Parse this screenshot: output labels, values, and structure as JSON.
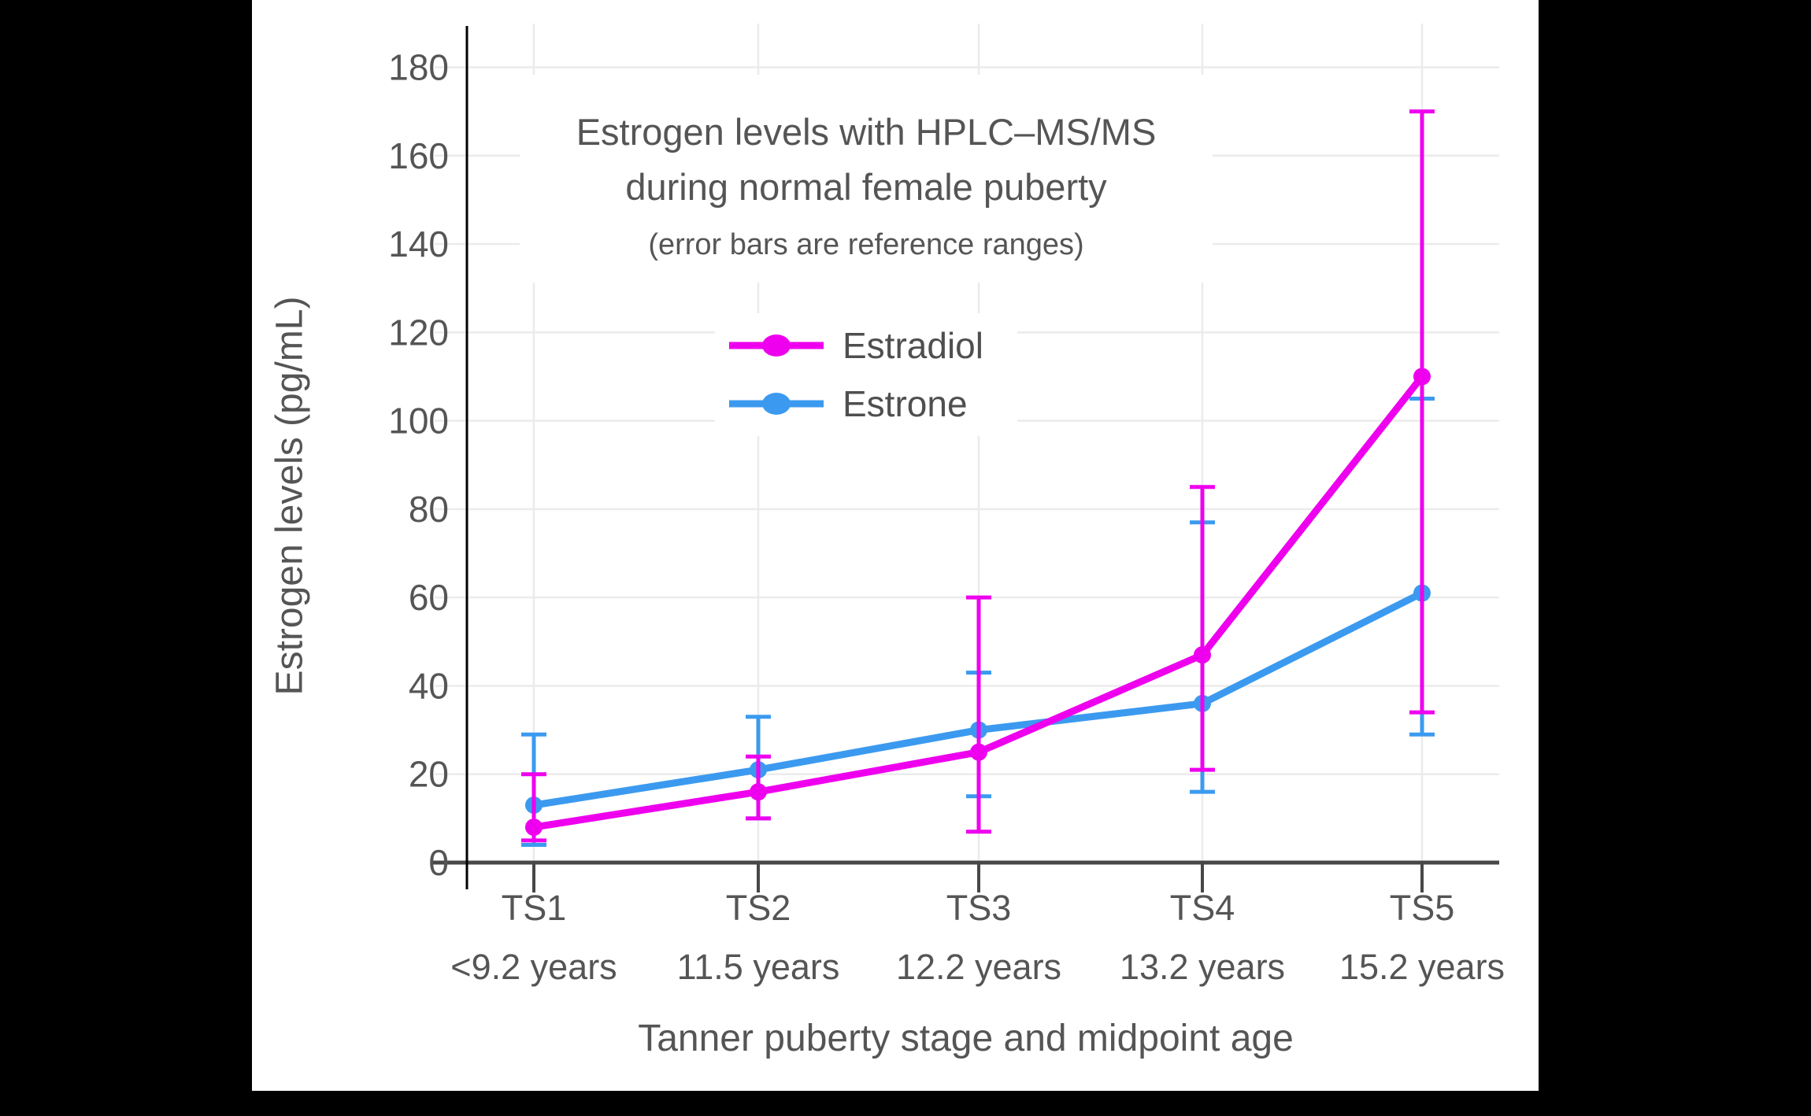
{
  "chart_data": {
    "type": "line",
    "title": "Estrogen levels with HPLC–MS/MS",
    "title_line2": "during normal female puberty",
    "subtitle": "(error bars are reference ranges)",
    "ylabel": "Estrogen levels (pg/mL)",
    "xlabel": "Tanner puberty stage and midpoint age",
    "categories": [
      "TS1",
      "TS2",
      "TS3",
      "TS4",
      "TS5"
    ],
    "category_sublabels": [
      "<9.2 years",
      "11.5 years",
      "12.2 years",
      "13.2 years",
      "15.2 years"
    ],
    "y_ticks": [
      0,
      20,
      40,
      60,
      80,
      100,
      120,
      140,
      160,
      180
    ],
    "ylim": [
      0,
      190
    ],
    "grid": true,
    "legend_position": "inside-upper-left",
    "colors": {
      "estradiol": "#EE00EE",
      "estrone": "#3B9AEF",
      "axis": "#474747",
      "spine": "#000000",
      "gridline": "#ebebeb",
      "text": "#555555"
    },
    "series": [
      {
        "name": "Estradiol",
        "color": "#EE00EE",
        "values": [
          8,
          16,
          25,
          47,
          110
        ],
        "error_low": [
          5,
          10,
          7,
          21,
          34
        ],
        "error_high": [
          20,
          24,
          60,
          85,
          170
        ]
      },
      {
        "name": "Estrone",
        "color": "#3B9AEF",
        "values": [
          13,
          21,
          30,
          36,
          61
        ],
        "error_low": [
          4,
          10,
          15,
          16,
          29
        ],
        "error_high": [
          29,
          33,
          43,
          77,
          105
        ]
      }
    ]
  }
}
